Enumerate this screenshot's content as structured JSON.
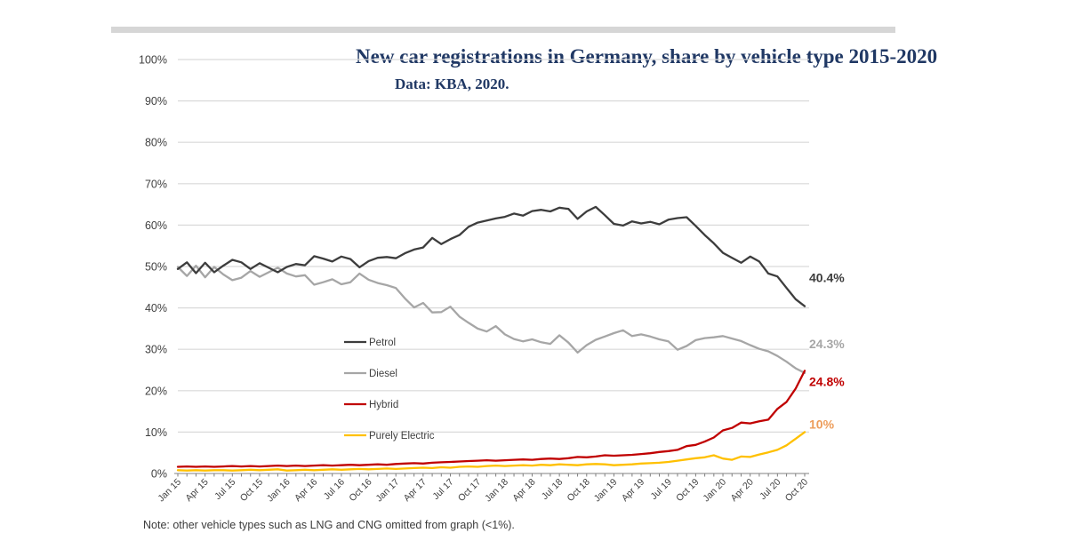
{
  "note": "Note: other vehicle types such as LNG and CNG omitted from graph (<1%).",
  "colors": {
    "title_text": "#203864",
    "axis_text": "#404040",
    "gridline": "#d9d9d9",
    "axis_line": "#9b9b9b",
    "tick": "#7f7f7f",
    "legend_text": "#404040",
    "note_text": "#3b3b3b"
  },
  "chart_data": {
    "type": "line",
    "title": "New car registrations in Germany, share by vehicle type 2015-2020",
    "subtitle": "Data: KBA, 2020.",
    "xlabel": "",
    "ylabel": "",
    "ylim": [
      0,
      100
    ],
    "y_tick_labels": [
      "0%",
      "10%",
      "20%",
      "30%",
      "40%",
      "50%",
      "60%",
      "70%",
      "80%",
      "90%",
      "100%"
    ],
    "grid": "horizontal",
    "legend_position": "inside-left",
    "months_total": 70,
    "x_range_note": "monthly data Jan 2015 - Oct 2020, tick labels every 3rd month",
    "x_tick_labels": [
      "Jan 15",
      "Apr 15",
      "Jul 15",
      "Oct 15",
      "Jan 16",
      "Apr 16",
      "Jul 16",
      "Oct 16",
      "Jan 17",
      "Apr 17",
      "Jul 17",
      "Oct 17",
      "Jan 18",
      "Apr 18",
      "Jul 18",
      "Oct 18",
      "Jan 19",
      "Apr 19",
      "Jul 19",
      "Oct 19",
      "Jan 20",
      "Apr 20",
      "Jul 20",
      "Oct 20"
    ],
    "series": [
      {
        "name": "Petrol",
        "color": "#3d3d3d",
        "end_label": "40.4%",
        "end_label_color": "#3d3d3d",
        "values": [
          49.4,
          51.0,
          48.4,
          50.9,
          48.6,
          50.2,
          51.6,
          51.0,
          49.4,
          50.8,
          49.7,
          48.6,
          49.9,
          50.6,
          50.3,
          52.5,
          51.9,
          51.2,
          52.4,
          51.8,
          49.8,
          51.3,
          52.1,
          52.3,
          52.0,
          53.2,
          54.1,
          54.6,
          56.9,
          55.4,
          56.6,
          57.6,
          59.6,
          60.6,
          61.1,
          61.6,
          62.0,
          62.8,
          62.3,
          63.4,
          63.7,
          63.3,
          64.2,
          63.9,
          61.5,
          63.3,
          64.4,
          62.4,
          60.3,
          59.9,
          60.9,
          60.4,
          60.8,
          60.2,
          61.3,
          61.7,
          61.9,
          59.8,
          57.6,
          55.6,
          53.3,
          52.1,
          50.9,
          52.4,
          51.2,
          48.3,
          47.6,
          44.8,
          42.1,
          40.4
        ]
      },
      {
        "name": "Diesel",
        "color": "#a6a6a6",
        "end_label": "24.3%",
        "end_label_color": "#a6a6a6",
        "values": [
          49.9,
          47.7,
          50.2,
          47.4,
          49.9,
          48.1,
          46.7,
          47.3,
          48.9,
          47.5,
          48.6,
          49.7,
          48.3,
          47.6,
          47.9,
          45.6,
          46.2,
          46.9,
          45.7,
          46.2,
          48.3,
          46.8,
          46.0,
          45.5,
          44.8,
          42.3,
          40.1,
          41.2,
          38.9,
          39.0,
          40.3,
          37.9,
          36.4,
          35.0,
          34.3,
          35.6,
          33.6,
          32.5,
          31.9,
          32.4,
          31.7,
          31.3,
          33.4,
          31.6,
          29.2,
          31.0,
          32.3,
          33.1,
          33.9,
          34.6,
          33.2,
          33.6,
          33.1,
          32.4,
          31.9,
          29.9,
          30.8,
          32.2,
          32.7,
          32.9,
          33.2,
          32.6,
          32.0,
          31.0,
          30.1,
          29.5,
          28.4,
          27.0,
          25.4,
          24.3
        ]
      },
      {
        "name": "Hybrid",
        "color": "#c00000",
        "end_label": "24.8%",
        "end_label_color": "#c00000",
        "values": [
          1.6,
          1.7,
          1.6,
          1.7,
          1.6,
          1.7,
          1.8,
          1.7,
          1.8,
          1.7,
          1.8,
          1.9,
          1.8,
          1.9,
          1.8,
          1.9,
          2.0,
          1.9,
          2.0,
          2.1,
          2.0,
          2.1,
          2.2,
          2.1,
          2.3,
          2.4,
          2.5,
          2.4,
          2.6,
          2.7,
          2.8,
          2.9,
          3.0,
          3.1,
          3.2,
          3.1,
          3.2,
          3.3,
          3.4,
          3.3,
          3.5,
          3.6,
          3.5,
          3.7,
          4.0,
          3.9,
          4.1,
          4.4,
          4.3,
          4.4,
          4.5,
          4.7,
          4.9,
          5.2,
          5.4,
          5.7,
          6.6,
          6.9,
          7.7,
          8.7,
          10.4,
          11.0,
          12.3,
          12.1,
          12.6,
          13.0,
          15.6,
          17.3,
          20.5,
          24.8
        ]
      },
      {
        "name": "Purely Electric",
        "color": "#ffc000",
        "end_label": "10%",
        "end_label_color": "#ed9d5b",
        "values": [
          0.8,
          0.7,
          0.8,
          0.7,
          0.8,
          0.8,
          0.7,
          0.8,
          0.9,
          0.8,
          0.9,
          1.0,
          0.7,
          0.8,
          0.9,
          0.8,
          0.9,
          1.0,
          0.9,
          1.0,
          1.1,
          1.0,
          1.1,
          1.2,
          1.1,
          1.2,
          1.3,
          1.4,
          1.3,
          1.5,
          1.4,
          1.6,
          1.7,
          1.6,
          1.8,
          1.9,
          1.8,
          1.9,
          2.0,
          1.9,
          2.1,
          2.0,
          2.2,
          2.1,
          2.0,
          2.2,
          2.3,
          2.2,
          2.0,
          2.1,
          2.2,
          2.4,
          2.5,
          2.6,
          2.8,
          3.1,
          3.4,
          3.7,
          3.9,
          4.4,
          3.6,
          3.3,
          4.1,
          4.0,
          4.6,
          5.1,
          5.7,
          6.8,
          8.4,
          10.0
        ]
      }
    ]
  }
}
